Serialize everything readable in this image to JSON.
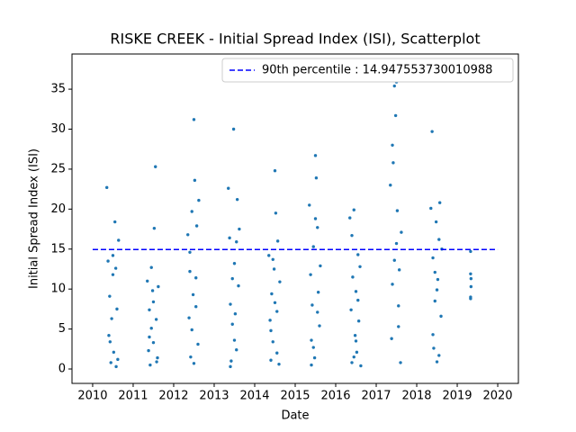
{
  "chart_data": {
    "type": "scatter",
    "title": "RISKE CREEK - Initial Spread Index (ISI), Scatterplot",
    "x_label": "Date",
    "y_label": "Initial Spread Index (ISI)",
    "color": "#1f77b4",
    "xlim": [
      2009.49,
      2020.51
    ],
    "ylim": [
      -1.8,
      39.4
    ],
    "xticks": [
      2010,
      2011,
      2012,
      2013,
      2014,
      2015,
      2016,
      2017,
      2018,
      2019,
      2020
    ],
    "yticks": [
      0,
      5,
      10,
      15,
      20,
      25,
      30,
      35
    ],
    "grid": false,
    "legend_position": "upper-right",
    "reference_line": {
      "label": "90th percentile : 14.947553730010988",
      "value": 14.947553730010988,
      "x_range": [
        2010,
        2020
      ],
      "color": "#0000ff",
      "style": "dashed"
    },
    "x": [
      2010.35,
      2010.38,
      2010.4,
      2010.42,
      2010.45,
      2010.47,
      2010.5,
      2010.52,
      2010.55,
      2010.57,
      2010.6,
      2010.62,
      2010.64,
      2010.5,
      2010.43,
      2010.58,
      2011.35,
      2011.38,
      2011.4,
      2011.42,
      2011.45,
      2011.48,
      2011.5,
      2011.52,
      2011.55,
      2011.57,
      2011.6,
      2011.62,
      2011.4,
      2011.5,
      2011.58,
      2011.45,
      2012.35,
      2012.38,
      2012.4,
      2012.42,
      2012.45,
      2012.48,
      2012.5,
      2012.52,
      2012.55,
      2012.57,
      2012.6,
      2012.62,
      2012.4,
      2012.5,
      2012.55,
      2012.45,
      2013.35,
      2013.38,
      2013.4,
      2013.42,
      2013.45,
      2013.48,
      2013.5,
      2013.52,
      2013.55,
      2013.57,
      2013.6,
      2013.62,
      2013.4,
      2013.5,
      2013.55,
      2013.45,
      2014.35,
      2014.38,
      2014.4,
      2014.42,
      2014.45,
      2014.48,
      2014.5,
      2014.52,
      2014.55,
      2014.57,
      2014.6,
      2014.62,
      2014.4,
      2014.5,
      2014.55,
      2014.45,
      2015.35,
      2015.38,
      2015.4,
      2015.42,
      2015.45,
      2015.48,
      2015.5,
      2015.52,
      2015.55,
      2015.57,
      2015.6,
      2015.62,
      2015.4,
      2015.5,
      2015.55,
      2015.45,
      2016.35,
      2016.38,
      2016.4,
      2016.42,
      2016.45,
      2016.48,
      2016.5,
      2016.52,
      2016.55,
      2016.57,
      2016.6,
      2016.62,
      2016.4,
      2016.5,
      2016.55,
      2016.45,
      2017.35,
      2017.38,
      2017.4,
      2017.42,
      2017.45,
      2017.48,
      2017.5,
      2017.52,
      2017.55,
      2017.57,
      2017.6,
      2017.62,
      2017.4,
      2017.5,
      2017.55,
      2017.45,
      2018.35,
      2018.38,
      2018.4,
      2018.42,
      2018.45,
      2018.48,
      2018.5,
      2018.52,
      2018.55,
      2018.57,
      2018.6,
      2018.62,
      2018.4,
      2018.5,
      2018.55,
      2018.45,
      2019.33,
      2019.33,
      2019.34,
      2019.33,
      2019.34,
      2019.33
    ],
    "values": [
      22.7,
      13.5,
      4.2,
      9.1,
      0.8,
      6.3,
      11.8,
      2.1,
      18.4,
      12.6,
      7.5,
      1.2,
      16.1,
      14.2,
      3.4,
      0.3,
      11.0,
      2.3,
      7.4,
      0.5,
      5.1,
      9.8,
      3.3,
      17.6,
      25.3,
      6.2,
      1.4,
      10.3,
      4.0,
      8.4,
      0.9,
      12.7,
      16.8,
      6.4,
      12.2,
      1.5,
      19.7,
      9.3,
      31.2,
      23.6,
      7.8,
      17.9,
      3.1,
      21.1,
      14.6,
      0.7,
      11.4,
      4.9,
      22.6,
      16.4,
      8.1,
      1.0,
      11.3,
      30.0,
      3.6,
      6.9,
      15.9,
      21.2,
      10.4,
      17.5,
      0.3,
      13.2,
      2.4,
      5.6,
      14.2,
      6.1,
      1.1,
      9.4,
      3.4,
      12.5,
      24.8,
      19.5,
      7.2,
      16.0,
      0.6,
      10.9,
      4.8,
      8.3,
      2.0,
      13.7,
      20.5,
      11.8,
      3.6,
      8.0,
      15.3,
      1.4,
      26.7,
      23.9,
      17.7,
      9.6,
      5.4,
      12.9,
      0.5,
      18.8,
      7.1,
      2.7,
      18.9,
      7.4,
      0.8,
      11.5,
      19.9,
      4.2,
      9.7,
      2.1,
      14.3,
      6.0,
      12.8,
      0.4,
      16.7,
      3.5,
      8.6,
      1.5,
      23.0,
      3.8,
      10.6,
      25.8,
      35.4,
      31.7,
      15.7,
      19.8,
      7.9,
      12.4,
      0.8,
      17.1,
      28.0,
      35.9,
      5.3,
      13.6,
      20.1,
      29.7,
      13.9,
      2.6,
      8.5,
      18.4,
      0.9,
      11.2,
      16.2,
      20.8,
      6.6,
      15.0,
      4.3,
      9.9,
      1.7,
      12.1,
      14.7,
      11.9,
      10.3,
      9.0,
      11.3,
      8.8
    ]
  }
}
